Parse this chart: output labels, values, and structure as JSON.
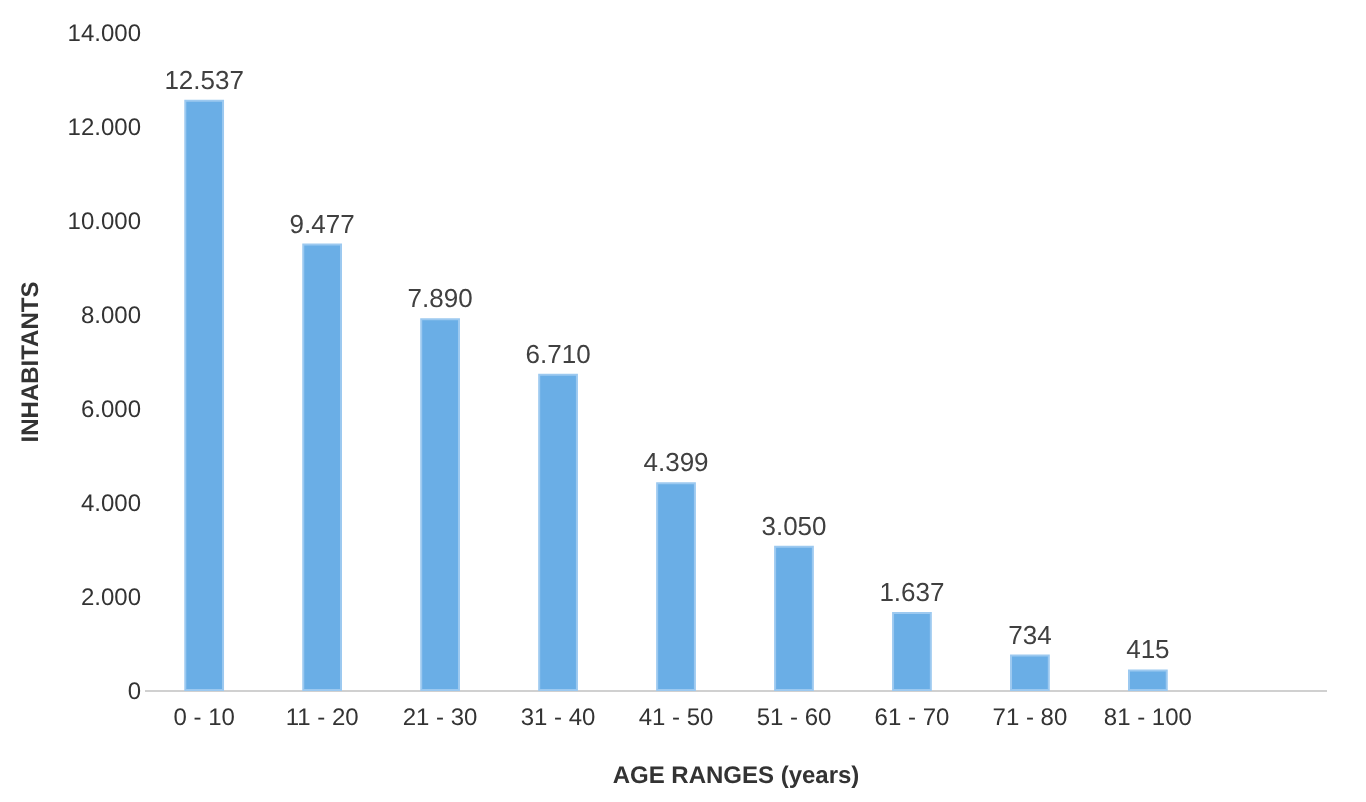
{
  "chart_data": {
    "type": "bar",
    "xlabel": "AGE RANGES (years)",
    "ylabel": "INHABITANTS",
    "categories": [
      "0 - 10",
      "11 - 20",
      "21 - 30",
      "31 - 40",
      "41 - 50",
      "51 - 60",
      "61 - 70",
      "71 - 80",
      "81 - 100",
      null
    ],
    "values": [
      12537,
      9477,
      7890,
      6710,
      4399,
      3050,
      1637,
      734,
      415,
      null
    ],
    "value_labels": [
      "12.537",
      "9.477",
      "7.890",
      "6.710",
      "4.399",
      "3.050",
      "1.637",
      "734",
      "415",
      null
    ],
    "color": "#6aaee6",
    "ylim": [
      0,
      14000
    ],
    "yticks": [
      {
        "value": 0,
        "label": "0"
      },
      {
        "value": 2000,
        "label": "2.000"
      },
      {
        "value": 4000,
        "label": "4.000"
      },
      {
        "value": 6000,
        "label": "6.000"
      },
      {
        "value": 8000,
        "label": "8.000"
      },
      {
        "value": 10000,
        "label": "10.000"
      },
      {
        "value": 12000,
        "label": "12.000"
      },
      {
        "value": 14000,
        "label": "14.000"
      }
    ],
    "grid": false
  }
}
